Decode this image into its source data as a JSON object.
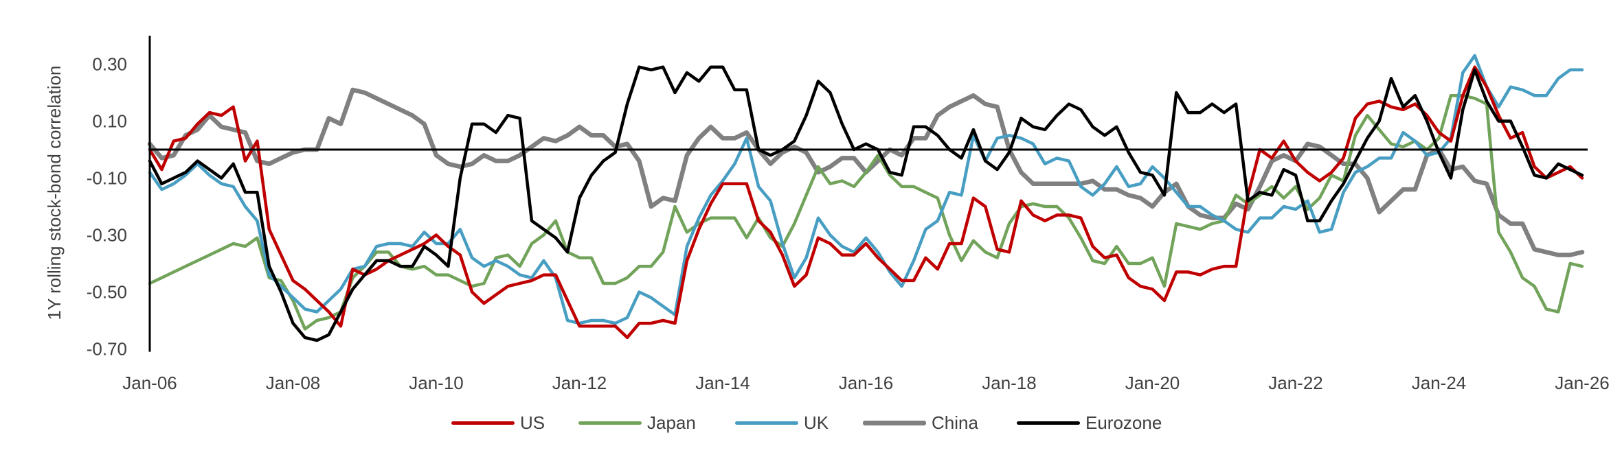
{
  "chart_data": {
    "type": "line",
    "title": "",
    "xlabel": "",
    "ylabel": "1Y rolling stock-bond correlation",
    "ylim": [
      -0.71,
      0.4
    ],
    "xlim": [
      "2006-01",
      "2026-01"
    ],
    "grid": false,
    "zero_line": true,
    "legend_position": "bottom",
    "y_ticks": [
      "0.30",
      "0.10",
      "-0.10",
      "-0.30",
      "-0.50",
      "-0.70"
    ],
    "y_tick_values": [
      0.3,
      0.1,
      -0.1,
      -0.3,
      -0.5,
      -0.7
    ],
    "x_ticks": [
      "Jan-06",
      "Jan-08",
      "Jan-10",
      "Jan-12",
      "Jan-14",
      "Jan-16",
      "Jan-18",
      "Jan-20",
      "Jan-22",
      "Jan-24",
      "Jan-26"
    ],
    "x_tick_dates": [
      "2006-01",
      "2008-01",
      "2010-01",
      "2012-01",
      "2014-01",
      "2016-01",
      "2018-01",
      "2020-01",
      "2022-01",
      "2024-01",
      "2026-01"
    ],
    "dates": [
      "2006-01",
      "2006-03",
      "2006-05",
      "2006-07",
      "2006-09",
      "2006-11",
      "2007-01",
      "2007-03",
      "2007-05",
      "2007-07",
      "2007-09",
      "2007-11",
      "2008-01",
      "2008-03",
      "2008-05",
      "2008-07",
      "2008-09",
      "2008-11",
      "2009-01",
      "2009-03",
      "2009-05",
      "2009-07",
      "2009-09",
      "2009-11",
      "2010-01",
      "2010-03",
      "2010-05",
      "2010-07",
      "2010-09",
      "2010-11",
      "2011-01",
      "2011-03",
      "2011-05",
      "2011-07",
      "2011-09",
      "2011-11",
      "2012-01",
      "2012-03",
      "2012-05",
      "2012-07",
      "2012-09",
      "2012-11",
      "2013-01",
      "2013-03",
      "2013-05",
      "2013-07",
      "2013-09",
      "2013-11",
      "2014-01",
      "2014-03",
      "2014-05",
      "2014-07",
      "2014-09",
      "2014-11",
      "2015-01",
      "2015-03",
      "2015-05",
      "2015-07",
      "2015-09",
      "2015-11",
      "2016-01",
      "2016-03",
      "2016-05",
      "2016-07",
      "2016-09",
      "2016-11",
      "2017-01",
      "2017-03",
      "2017-05",
      "2017-07",
      "2017-09",
      "2017-11",
      "2018-01",
      "2018-03",
      "2018-05",
      "2018-07",
      "2018-09",
      "2018-11",
      "2019-01",
      "2019-03",
      "2019-05",
      "2019-07",
      "2019-09",
      "2019-11",
      "2020-01",
      "2020-03",
      "2020-05",
      "2020-07",
      "2020-09",
      "2020-11",
      "2021-01",
      "2021-03",
      "2021-05",
      "2021-07",
      "2021-09",
      "2021-11",
      "2022-01",
      "2022-03",
      "2022-05",
      "2022-07",
      "2022-09",
      "2022-11",
      "2023-01",
      "2023-03",
      "2023-05",
      "2023-07",
      "2023-09",
      "2023-11",
      "2024-01",
      "2024-03",
      "2024-05",
      "2024-07",
      "2024-09",
      "2024-11",
      "2025-01",
      "2025-03",
      "2025-05",
      "2025-07",
      "2025-09",
      "2025-11",
      "2026-01"
    ],
    "series": [
      {
        "name": "US",
        "color": "#C00000",
        "values": [
          0.0,
          -0.07,
          0.03,
          0.04,
          0.09,
          0.13,
          0.12,
          0.15,
          -0.04,
          0.03,
          -0.28,
          -0.37,
          -0.46,
          -0.49,
          -0.53,
          -0.57,
          -0.62,
          -0.42,
          -0.44,
          -0.42,
          -0.39,
          -0.37,
          -0.35,
          -0.33,
          -0.3,
          -0.34,
          -0.37,
          -0.5,
          -0.54,
          -0.51,
          -0.48,
          -0.47,
          -0.46,
          -0.44,
          -0.44,
          -0.53,
          -0.62,
          -0.62,
          -0.62,
          -0.62,
          -0.66,
          -0.61,
          -0.61,
          -0.6,
          -0.61,
          -0.39,
          -0.28,
          -0.19,
          -0.12,
          -0.12,
          -0.12,
          -0.25,
          -0.29,
          -0.37,
          -0.48,
          -0.44,
          -0.31,
          -0.33,
          -0.37,
          -0.37,
          -0.33,
          -0.38,
          -0.42,
          -0.46,
          -0.46,
          -0.38,
          -0.42,
          -0.33,
          -0.33,
          -0.17,
          -0.2,
          -0.35,
          -0.36,
          -0.18,
          -0.23,
          -0.25,
          -0.23,
          -0.23,
          -0.24,
          -0.34,
          -0.38,
          -0.37,
          -0.45,
          -0.48,
          -0.49,
          -0.53,
          -0.43,
          -0.43,
          -0.44,
          -0.42,
          -0.41,
          -0.41,
          -0.16,
          0.0,
          -0.03,
          0.03,
          -0.04,
          -0.08,
          -0.11,
          -0.08,
          -0.03,
          0.11,
          0.16,
          0.17,
          0.15,
          0.14,
          0.16,
          0.12,
          0.06,
          0.03,
          0.19,
          0.29,
          0.22,
          0.12,
          0.04,
          0.06,
          -0.06,
          -0.1,
          -0.08,
          -0.06,
          -0.1
        ]
      },
      {
        "name": "Japan",
        "color": "#72A35A",
        "values": [
          -0.47,
          -0.45,
          -0.43,
          -0.41,
          -0.39,
          -0.37,
          -0.35,
          -0.33,
          -0.34,
          -0.31,
          -0.45,
          -0.46,
          -0.53,
          -0.63,
          -0.6,
          -0.59,
          -0.57,
          -0.45,
          -0.41,
          -0.36,
          -0.36,
          -0.41,
          -0.42,
          -0.41,
          -0.44,
          -0.44,
          -0.46,
          -0.48,
          -0.47,
          -0.38,
          -0.37,
          -0.41,
          -0.33,
          -0.3,
          -0.25,
          -0.36,
          -0.38,
          -0.38,
          -0.47,
          -0.47,
          -0.45,
          -0.41,
          -0.41,
          -0.36,
          -0.2,
          -0.29,
          -0.26,
          -0.24,
          -0.24,
          -0.24,
          -0.31,
          -0.24,
          -0.31,
          -0.34,
          -0.26,
          -0.16,
          -0.06,
          -0.12,
          -0.11,
          -0.13,
          -0.08,
          -0.02,
          -0.09,
          -0.13,
          -0.13,
          -0.15,
          -0.17,
          -0.3,
          -0.39,
          -0.32,
          -0.36,
          -0.38,
          -0.26,
          -0.2,
          -0.19,
          -0.2,
          -0.2,
          -0.24,
          -0.31,
          -0.39,
          -0.4,
          -0.34,
          -0.4,
          -0.4,
          -0.38,
          -0.48,
          -0.26,
          -0.27,
          -0.28,
          -0.26,
          -0.25,
          -0.16,
          -0.19,
          -0.16,
          -0.13,
          -0.17,
          -0.13,
          -0.21,
          -0.17,
          -0.09,
          -0.11,
          0.05,
          0.12,
          0.07,
          0.02,
          0.01,
          0.03,
          0.0,
          0.04,
          0.19,
          0.19,
          0.18,
          0.16,
          -0.29,
          -0.36,
          -0.45,
          -0.48,
          -0.56,
          -0.57,
          -0.4,
          -0.41
        ]
      },
      {
        "name": "UK",
        "color": "#479EC2",
        "values": [
          -0.08,
          -0.14,
          -0.12,
          -0.09,
          -0.05,
          -0.09,
          -0.12,
          -0.13,
          -0.2,
          -0.25,
          -0.44,
          -0.48,
          -0.52,
          -0.56,
          -0.57,
          -0.53,
          -0.49,
          -0.42,
          -0.41,
          -0.34,
          -0.33,
          -0.33,
          -0.34,
          -0.29,
          -0.33,
          -0.33,
          -0.28,
          -0.38,
          -0.41,
          -0.39,
          -0.41,
          -0.44,
          -0.45,
          -0.39,
          -0.45,
          -0.6,
          -0.61,
          -0.6,
          -0.6,
          -0.61,
          -0.59,
          -0.5,
          -0.52,
          -0.55,
          -0.58,
          -0.34,
          -0.24,
          -0.16,
          -0.11,
          -0.05,
          0.04,
          -0.13,
          -0.18,
          -0.33,
          -0.45,
          -0.38,
          -0.24,
          -0.3,
          -0.34,
          -0.36,
          -0.31,
          -0.36,
          -0.43,
          -0.48,
          -0.39,
          -0.28,
          -0.25,
          -0.15,
          -0.16,
          0.05,
          -0.04,
          0.04,
          0.05,
          0.04,
          0.02,
          -0.05,
          -0.03,
          -0.04,
          -0.13,
          -0.16,
          -0.12,
          -0.06,
          -0.13,
          -0.12,
          -0.06,
          -0.1,
          -0.15,
          -0.2,
          -0.2,
          -0.23,
          -0.25,
          -0.28,
          -0.29,
          -0.24,
          -0.24,
          -0.2,
          -0.21,
          -0.18,
          -0.29,
          -0.28,
          -0.15,
          -0.08,
          -0.06,
          -0.03,
          -0.03,
          0.06,
          0.03,
          -0.02,
          -0.01,
          0.04,
          0.27,
          0.33,
          0.22,
          0.15,
          0.22,
          0.21,
          0.19,
          0.19,
          0.25,
          0.28,
          0.28
        ]
      },
      {
        "name": "China",
        "color": "#808080",
        "values": [
          0.02,
          -0.03,
          -0.02,
          0.05,
          0.07,
          0.12,
          0.08,
          0.07,
          0.06,
          -0.04,
          -0.05,
          -0.03,
          -0.01,
          0.0,
          0.0,
          0.11,
          0.09,
          0.21,
          0.2,
          0.18,
          0.16,
          0.14,
          0.12,
          0.09,
          -0.02,
          -0.05,
          -0.06,
          -0.05,
          -0.02,
          -0.04,
          -0.04,
          -0.02,
          0.01,
          0.04,
          0.03,
          0.05,
          0.08,
          0.05,
          0.05,
          0.01,
          0.02,
          -0.04,
          -0.2,
          -0.17,
          -0.18,
          -0.02,
          0.04,
          0.08,
          0.04,
          0.04,
          0.06,
          0.0,
          -0.05,
          -0.01,
          0.01,
          -0.01,
          -0.08,
          -0.06,
          -0.03,
          -0.03,
          -0.08,
          -0.04,
          0.0,
          -0.02,
          0.04,
          0.04,
          0.12,
          0.15,
          0.17,
          0.19,
          0.16,
          0.15,
          0.0,
          -0.08,
          -0.12,
          -0.12,
          -0.12,
          -0.12,
          -0.12,
          -0.11,
          -0.14,
          -0.14,
          -0.16,
          -0.17,
          -0.2,
          -0.15,
          -0.12,
          -0.2,
          -0.23,
          -0.24,
          -0.24,
          -0.19,
          -0.21,
          -0.13,
          -0.04,
          -0.02,
          -0.04,
          0.02,
          0.01,
          -0.02,
          -0.05,
          -0.05,
          -0.1,
          -0.22,
          -0.18,
          -0.14,
          -0.14,
          -0.02,
          0.0,
          -0.07,
          -0.06,
          -0.11,
          -0.12,
          -0.23,
          -0.26,
          -0.26,
          -0.35,
          -0.36,
          -0.37,
          -0.37,
          -0.36
        ]
      },
      {
        "name": "Eurozone",
        "color": "#000000",
        "values": [
          -0.04,
          -0.12,
          -0.1,
          -0.08,
          -0.04,
          -0.07,
          -0.1,
          -0.05,
          -0.15,
          -0.15,
          -0.41,
          -0.5,
          -0.61,
          -0.66,
          -0.67,
          -0.65,
          -0.57,
          -0.49,
          -0.44,
          -0.39,
          -0.39,
          -0.41,
          -0.41,
          -0.34,
          -0.37,
          -0.41,
          -0.1,
          0.09,
          0.09,
          0.06,
          0.12,
          0.11,
          -0.25,
          -0.28,
          -0.31,
          -0.36,
          -0.17,
          -0.09,
          -0.04,
          -0.01,
          0.16,
          0.29,
          0.28,
          0.29,
          0.2,
          0.27,
          0.24,
          0.29,
          0.29,
          0.21,
          0.21,
          0.0,
          -0.02,
          0.0,
          0.03,
          0.12,
          0.24,
          0.2,
          0.09,
          0.0,
          0.02,
          0.0,
          -0.08,
          -0.09,
          0.08,
          0.08,
          0.05,
          0.0,
          -0.03,
          0.07,
          -0.04,
          -0.07,
          -0.01,
          0.11,
          0.08,
          0.07,
          0.12,
          0.16,
          0.14,
          0.08,
          0.05,
          0.08,
          -0.01,
          -0.08,
          -0.09,
          -0.16,
          0.2,
          0.13,
          0.13,
          0.16,
          0.13,
          0.16,
          -0.18,
          -0.15,
          -0.16,
          -0.07,
          -0.09,
          -0.25,
          -0.25,
          -0.18,
          -0.12,
          -0.04,
          0.04,
          0.1,
          0.25,
          0.15,
          0.19,
          0.1,
          -0.01,
          -0.1,
          0.14,
          0.28,
          0.17,
          0.1,
          0.1,
          0.01,
          -0.09,
          -0.1,
          -0.05,
          -0.07,
          -0.09
        ]
      }
    ]
  }
}
